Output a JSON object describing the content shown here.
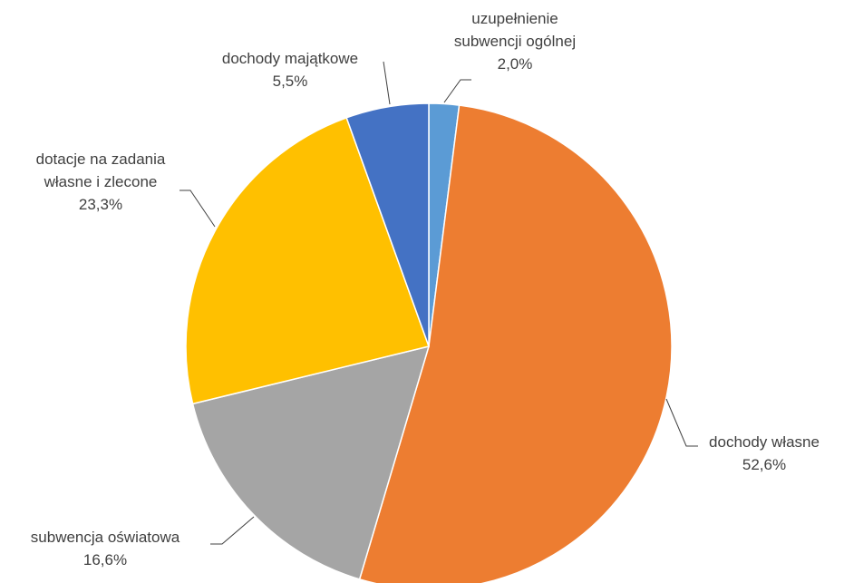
{
  "chart_data": {
    "type": "pie",
    "categories": [
      "uzupełnienie subwencji ogólnej",
      "dochody własne",
      "subwencja oświatowa",
      "dotacje na zadania własne i zlecone",
      "dochody majątkowe"
    ],
    "values": [
      2.0,
      52.6,
      16.6,
      23.3,
      5.5
    ],
    "value_labels": [
      "2,0%",
      "52,6%",
      "16,6%",
      "23,3%",
      "5,5%"
    ],
    "colors": [
      "#5b9bd5",
      "#ed7d31",
      "#a5a5a5",
      "#ffc000",
      "#4472c4"
    ]
  }
}
